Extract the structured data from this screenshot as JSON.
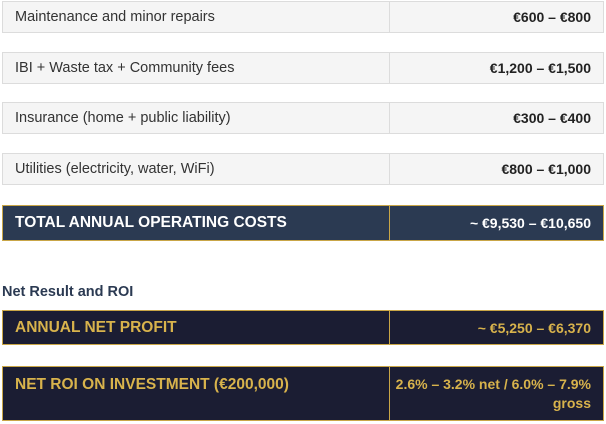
{
  "rows": [
    {
      "label": "Maintenance and minor repairs",
      "value": "€600 – €800"
    },
    {
      "label": "IBI + Waste tax + Community fees",
      "value": "€1,200 – €1,500"
    },
    {
      "label": "Insurance (home + public liability)",
      "value": "€300 – €400"
    },
    {
      "label": "Utilities (electricity, water, WiFi)",
      "value": "€800 – €1,000"
    }
  ],
  "total": {
    "label": "TOTAL ANNUAL OPERATING COSTS",
    "value": "~ €9,530 – €10,650"
  },
  "section_title": "Net Result and ROI",
  "profit": {
    "label": "ANNUAL NET PROFIT",
    "value": "~ €5,250 – €6,370"
  },
  "roi": {
    "label": "NET ROI ON INVESTMENT (€200,000)",
    "value": "2.6% – 3.2% net / 6.0% – 7.9% gross"
  },
  "colors": {
    "navy": "#2b3a52",
    "dark": "#1b1d33",
    "gold": "#c9a647",
    "gold_text": "#d8b34c",
    "light_bg": "#f5f5f5"
  }
}
